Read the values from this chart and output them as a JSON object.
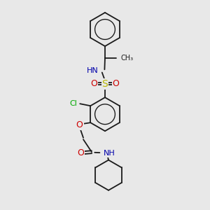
{
  "bg_color": "#e8e8e8",
  "bond_color": "#1a1a1a",
  "S_color": "#b8b800",
  "O_color": "#cc0000",
  "N_color": "#0000aa",
  "Cl_color": "#00aa00",
  "lw": 1.3,
  "fig_w": 3.0,
  "fig_h": 3.0,
  "dpi": 100,
  "xlim": [
    2.5,
    7.5
  ],
  "ylim": [
    0.5,
    10.5
  ]
}
